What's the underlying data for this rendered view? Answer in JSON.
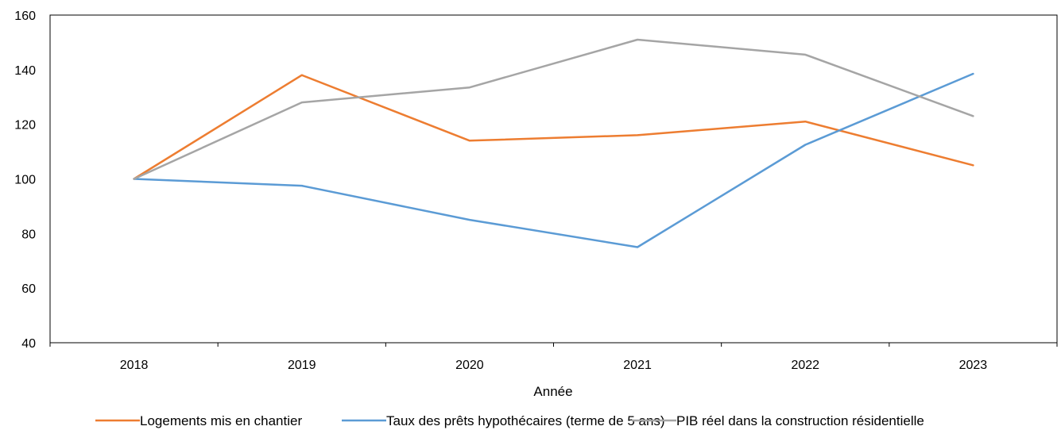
{
  "chart_data": {
    "type": "line",
    "title": "",
    "xlabel": "Année",
    "ylabel": "",
    "categories": [
      "2018",
      "2019",
      "2020",
      "2021",
      "2022",
      "2023"
    ],
    "ylim": [
      40,
      160
    ],
    "yticks": [
      40,
      60,
      80,
      100,
      120,
      140,
      160
    ],
    "grid": false,
    "legend_position": "bottom",
    "series": [
      {
        "name": "Logements mis en chantier",
        "color": "#ED7D31",
        "values": [
          100,
          138,
          114,
          116,
          121,
          105
        ]
      },
      {
        "name": "Taux des prêts hypothécaires (terme de 5 ans)",
        "color": "#5B9BD5",
        "values": [
          100,
          97.5,
          85,
          75,
          112.5,
          138.5
        ]
      },
      {
        "name": "PIB réel dans la construction résidentielle",
        "color": "#A5A5A5",
        "values": [
          100,
          128,
          133.5,
          151,
          145.5,
          123
        ]
      }
    ]
  }
}
